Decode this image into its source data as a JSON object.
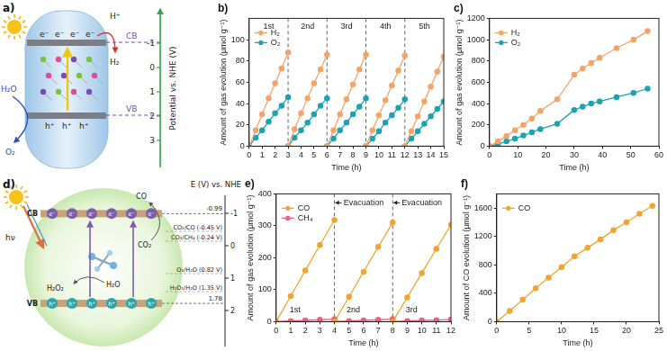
{
  "chart_data": [
    {
      "title": "b)",
      "type": "line",
      "x_label": "Time (h)",
      "y_label": "Amount of gas evolution (μmol g⁻¹)",
      "x": [
        0,
        0.5,
        1,
        1.5,
        2,
        2.5,
        3,
        3,
        3,
        3.5,
        4,
        4.5,
        5,
        5.5,
        6,
        6,
        6,
        6.5,
        7,
        7.5,
        8,
        8.5,
        9,
        9,
        9,
        9.5,
        10,
        10.5,
        11,
        11.5,
        12,
        12,
        12,
        12.5,
        13,
        13.5,
        14,
        14.5,
        15
      ],
      "series": [
        {
          "name": "H₂",
          "color": "#f4a46a",
          "marker": "circle",
          "line_style": "solid",
          "values": [
            0,
            15,
            30,
            45,
            59,
            73,
            88,
            null,
            0,
            16,
            31,
            45,
            59,
            72,
            86,
            null,
            0,
            15,
            30,
            44,
            58,
            72,
            86,
            null,
            0,
            15,
            29,
            43,
            57,
            71,
            85,
            null,
            0,
            14,
            28,
            42,
            56,
            70,
            84
          ]
        },
        {
          "name": "O₂",
          "color": "#1aa3b4",
          "marker": "circle",
          "line_style": "solid",
          "values": [
            0,
            8,
            15,
            23,
            31,
            38,
            46,
            null,
            0,
            8,
            15,
            22,
            30,
            38,
            45,
            null,
            0,
            7,
            15,
            22,
            30,
            37,
            45,
            null,
            0,
            7,
            14,
            22,
            29,
            36,
            44,
            null,
            0,
            7,
            14,
            21,
            28,
            35,
            42
          ]
        }
      ],
      "xlim": [
        0,
        15
      ],
      "xticks": [
        0,
        1,
        2,
        3,
        4,
        5,
        6,
        7,
        8,
        9,
        10,
        11,
        12,
        13,
        14,
        15
      ],
      "ylim": [
        0,
        120
      ],
      "yticks": [
        0,
        20,
        40,
        60,
        80,
        100
      ],
      "grid": false,
      "legend": "upper left",
      "cycle_boundaries": [
        3,
        6,
        9,
        12
      ],
      "cycle_labels": [
        {
          "text": "1st",
          "x": 1.5,
          "y": 112
        },
        {
          "text": "2nd",
          "x": 4.5,
          "y": 112
        },
        {
          "text": "3rd",
          "x": 7.5,
          "y": 112
        },
        {
          "text": "4th",
          "x": 10.5,
          "y": 112
        },
        {
          "text": "5th",
          "x": 13.5,
          "y": 112
        }
      ]
    },
    {
      "title": "c)",
      "type": "line",
      "x_label": "Time (h)",
      "y_label": "Amount of gas evolution (μmol g⁻¹)",
      "x": [
        0,
        3,
        6,
        9,
        12,
        15,
        18,
        24,
        30,
        33,
        36,
        39,
        45,
        51,
        56
      ],
      "series": [
        {
          "name": "H₂",
          "color": "#f4a46a",
          "marker": "circle",
          "line_style": "solid",
          "values": [
            0,
            45,
            95,
            150,
            200,
            260,
            330,
            440,
            670,
            730,
            780,
            830,
            920,
            1000,
            1080
          ]
        },
        {
          "name": "O₂",
          "color": "#1aa3b4",
          "marker": "circle",
          "line_style": "solid",
          "values": [
            0,
            20,
            45,
            70,
            100,
            130,
            160,
            210,
            340,
            370,
            400,
            420,
            460,
            500,
            540
          ]
        }
      ],
      "xlim": [
        0,
        60
      ],
      "xticks": [
        0,
        10,
        20,
        30,
        40,
        50,
        60
      ],
      "ylim": [
        0,
        1200
      ],
      "yticks": [
        0,
        200,
        400,
        600,
        800,
        1000,
        1200
      ],
      "grid": false,
      "legend": "upper left"
    },
    {
      "title": "e)",
      "type": "line",
      "x_label": "Time (h)",
      "y_label": "Amount of gas evolution (μmol g⁻¹)",
      "x": [
        0,
        1,
        2,
        3,
        4,
        4,
        4,
        5,
        6,
        7,
        8,
        8,
        8,
        9,
        10,
        11,
        12
      ],
      "series": [
        {
          "name": "CO",
          "color": "#f2a52e",
          "marker": "circle",
          "line_style": "solid",
          "values": [
            0,
            80,
            160,
            240,
            318,
            null,
            0,
            78,
            156,
            234,
            310,
            null,
            0,
            76,
            152,
            228,
            303
          ]
        },
        {
          "name": "CH₄",
          "color": "#e8637c",
          "marker": "circle",
          "line_style": "solid",
          "values": [
            0,
            2,
            4,
            6,
            8,
            null,
            0,
            2,
            4,
            6,
            8,
            null,
            0,
            2,
            4,
            5,
            7
          ]
        }
      ],
      "xlim": [
        0,
        12
      ],
      "xticks": [
        0,
        1,
        2,
        3,
        4,
        5,
        6,
        7,
        8,
        9,
        10,
        11,
        12
      ],
      "ylim": [
        0,
        400
      ],
      "yticks": [
        0,
        100,
        200,
        300,
        400
      ],
      "grid": false,
      "legend": "upper left",
      "cycle_boundaries": [
        4,
        8
      ],
      "cycle_labels": [
        {
          "text": "1st",
          "x": 1.3,
          "y": 35
        },
        {
          "text": "2nd",
          "x": 5.3,
          "y": 35
        },
        {
          "text": "3rd",
          "x": 9.3,
          "y": 35
        }
      ],
      "annotations": [
        {
          "text": "Evacuation",
          "x": 6,
          "y": 372
        },
        {
          "text": "Evacuation",
          "x": 10,
          "y": 372
        }
      ]
    },
    {
      "title": "f)",
      "type": "line",
      "x_label": "Time (h)",
      "y_label": "Amount of CO evolution (μmol g⁻¹)",
      "x": [
        0,
        2,
        4,
        6,
        8,
        10,
        12,
        14,
        16,
        18,
        20,
        22,
        24
      ],
      "series": [
        {
          "name": "CO",
          "color": "#f2a52e",
          "marker": "circle",
          "line_style": "solid",
          "values": [
            0,
            150,
            310,
            470,
            620,
            770,
            920,
            1040,
            1160,
            1290,
            1400,
            1520,
            1630
          ]
        }
      ],
      "xlim": [
        0,
        25
      ],
      "xticks": [
        0,
        5,
        10,
        15,
        20,
        25
      ],
      "ylim": [
        0,
        1800
      ],
      "yticks": [
        0,
        400,
        800,
        1200,
        1600
      ],
      "grid": false,
      "legend": "upper left"
    }
  ],
  "diagrams": [
    {
      "title": "a)",
      "axis_title": "Potential vs. NHE (V)",
      "axis_ticks": [
        -1,
        0,
        1,
        2,
        3
      ],
      "band_labels": [
        "CB",
        "VB"
      ],
      "electrons": [
        "e⁻",
        "e⁻",
        "e⁻",
        "e⁻"
      ],
      "holes": [
        "h⁺",
        "h⁺",
        "h⁺"
      ],
      "reduction": {
        "reactant": "H⁺",
        "product": "H₂"
      },
      "oxidation": {
        "reactant": "H₂O",
        "product": "O₂"
      }
    },
    {
      "title": "d)",
      "axis_title": "E (V) vs. NHE",
      "axis_ticks": [
        -1,
        0,
        1,
        2
      ],
      "light": "hν",
      "band_labels": [
        "CB",
        "VB"
      ],
      "band_edges": [
        -0.99,
        1.78
      ],
      "redox_levels": [
        "CO₂/CO (-0.45 V)",
        "CO₂/CH₄ (-0.24 V)",
        "O₂/H₂O (0.82 V)",
        "H₂O₂/H₂O (1.35 V)"
      ],
      "electrons": [
        "e⁻",
        "e⁻",
        "e⁻",
        "e⁻",
        "e⁻",
        "e⁻"
      ],
      "holes": [
        "h⁺",
        "h⁺",
        "h⁺",
        "h⁺",
        "h⁺",
        "h⁺"
      ],
      "reduction": {
        "reactant": "CO₂",
        "product": "CO"
      },
      "oxidation": {
        "reactant": "H₂O",
        "product": "H₂O₂"
      }
    }
  ]
}
